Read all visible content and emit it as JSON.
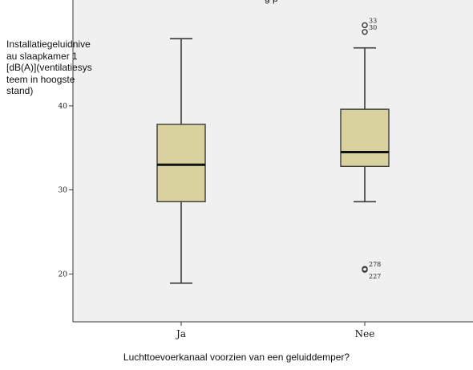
{
  "chart_data": {
    "type": "boxplot",
    "title_fragment": "g        p",
    "ylabel": "Installatiegeluidniveau slaapkamer 1 [dB(A)](ventilatiesysteem in hoogste stand)",
    "ylabel_lines": [
      "Installatiegeluidnive",
      "au slaapkamer 1",
      "[dB(A)](ventilatiesys",
      "teem in hoogste",
      "stand)"
    ],
    "xlabel": "Luchttoevoerkanaal voorzien van een geluiddemper?",
    "ylim": [
      14.3,
      52.6
    ],
    "yticks": [
      20,
      30,
      40
    ],
    "categories": [
      "Ja",
      "Nee"
    ],
    "boxes": [
      {
        "category": "Ja",
        "min": 18.9,
        "q1": 28.6,
        "median": 33.0,
        "q3": 37.8,
        "max": 48.0
      },
      {
        "category": "Nee",
        "min": 28.6,
        "q1": 32.8,
        "median": 34.5,
        "q3": 39.6,
        "max": 46.9
      }
    ],
    "outliers": [
      {
        "category": "Nee",
        "value": 49.6,
        "label": "33"
      },
      {
        "category": "Nee",
        "value": 48.8,
        "label": "30"
      },
      {
        "category": "Nee",
        "value": 20.6,
        "label": "278"
      },
      {
        "category": "Nee",
        "value": 20.5,
        "label": "227"
      }
    ],
    "colors": {
      "plot_bg": "#f0f0f0",
      "box_fill": "#d9d29e",
      "line": "#3a3a3a"
    },
    "grid": false
  }
}
